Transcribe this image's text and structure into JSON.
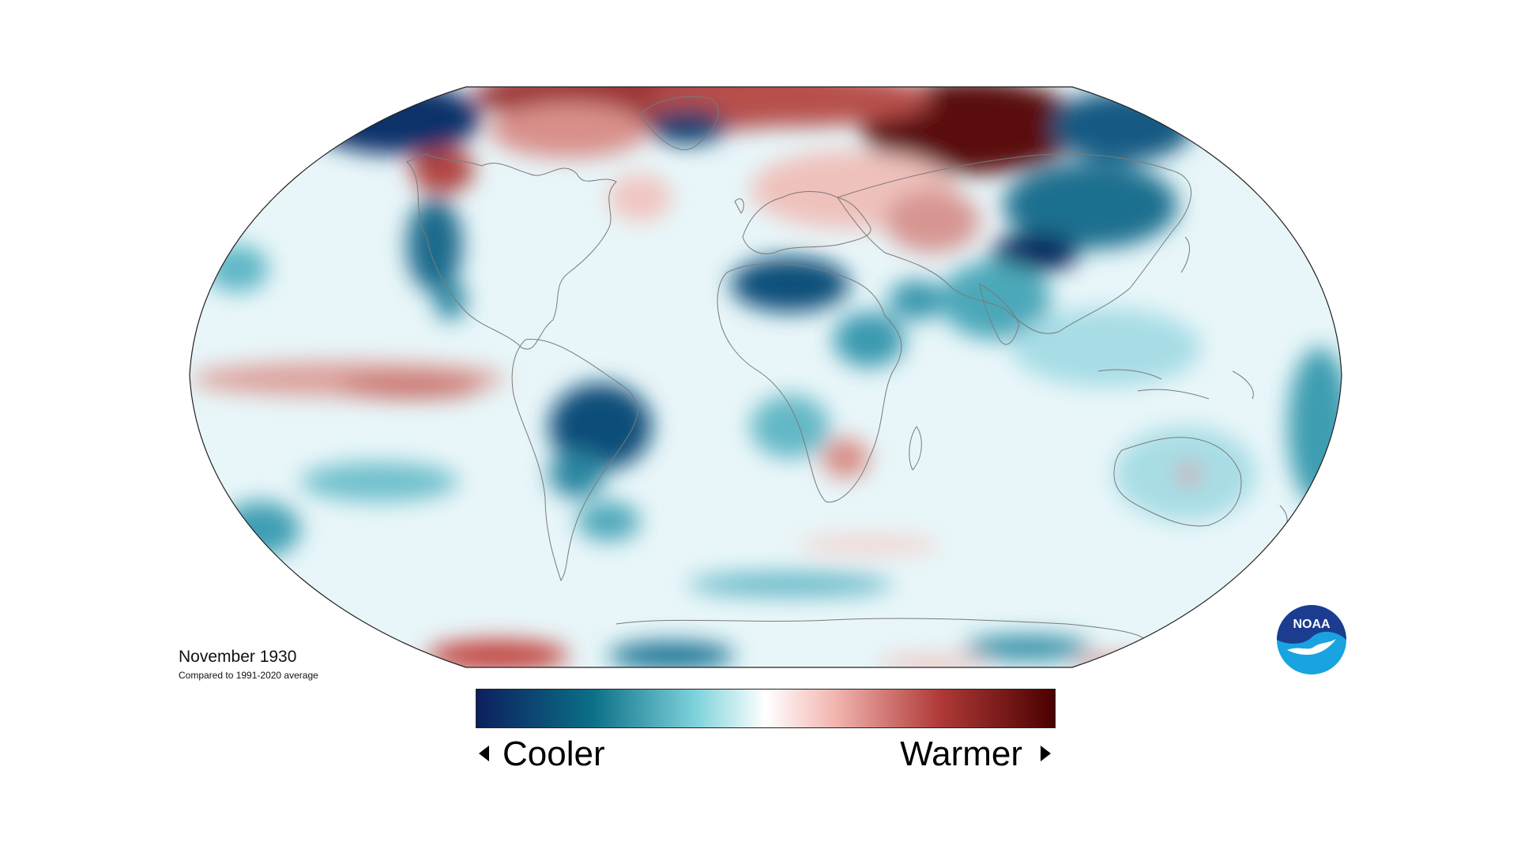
{
  "map": {
    "title": "November 1930",
    "subtitle": "Compared to 1991-2020 average",
    "projection": "robinson",
    "colors": {
      "cold_extreme": "#0d2660",
      "cold": "#16798f",
      "neutral": "#ffffff",
      "warm": "#e29a92",
      "warm_extreme": "#4d0000",
      "coastline": "#7a7a7a"
    }
  },
  "legend": {
    "cool_label": "Cooler",
    "warm_label": "Warmer",
    "cool_icon": "left-triangle-icon",
    "warm_icon": "right-triangle-icon",
    "gradient": [
      "#0c1f5d",
      "#0b6f87",
      "#7fd3dc",
      "#ffffff",
      "#f2b5b0",
      "#b03a38",
      "#4a0000"
    ]
  },
  "logo": {
    "text": "NOAA",
    "icon": "noaa-logo-icon",
    "colors": {
      "dark": "#1c3d8f",
      "light": "#19a3e0"
    }
  }
}
